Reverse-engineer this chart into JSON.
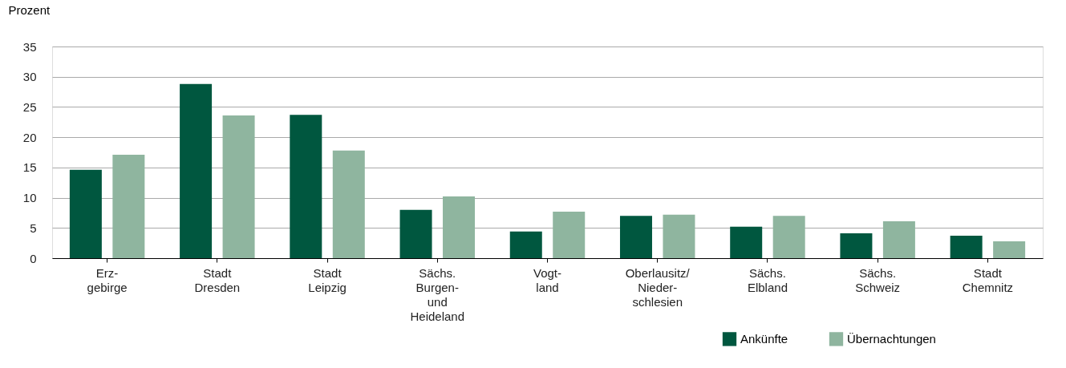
{
  "chart_data": {
    "type": "bar",
    "ylabel": "Prozent",
    "categories": [
      "Erz-\ngebirge",
      "Stadt\nDresden",
      "Stadt\nLeipzig",
      "Sächs.\nBurgen-\nund\nHeideland",
      "Vogt-\nland",
      "Oberlausitz/\nNieder-\nschlesien",
      "Sächs.\nElbland",
      "Sächs.\nSchweiz",
      "Stadt\nChemnitz"
    ],
    "series": [
      {
        "name": "Ankünfte",
        "color": "#00573f",
        "values": [
          14.6,
          28.8,
          23.7,
          8.0,
          4.4,
          7.0,
          5.2,
          4.1,
          3.7
        ]
      },
      {
        "name": "Übernachtungen",
        "color": "#8fb59f",
        "values": [
          17.1,
          23.6,
          17.8,
          10.2,
          7.7,
          7.2,
          7.0,
          6.1,
          2.8
        ]
      }
    ],
    "ylim": [
      0,
      35
    ],
    "yticks": [
      0,
      5,
      10,
      15,
      20,
      25,
      30,
      35
    ],
    "grid": "y",
    "legend": "bottom right"
  }
}
